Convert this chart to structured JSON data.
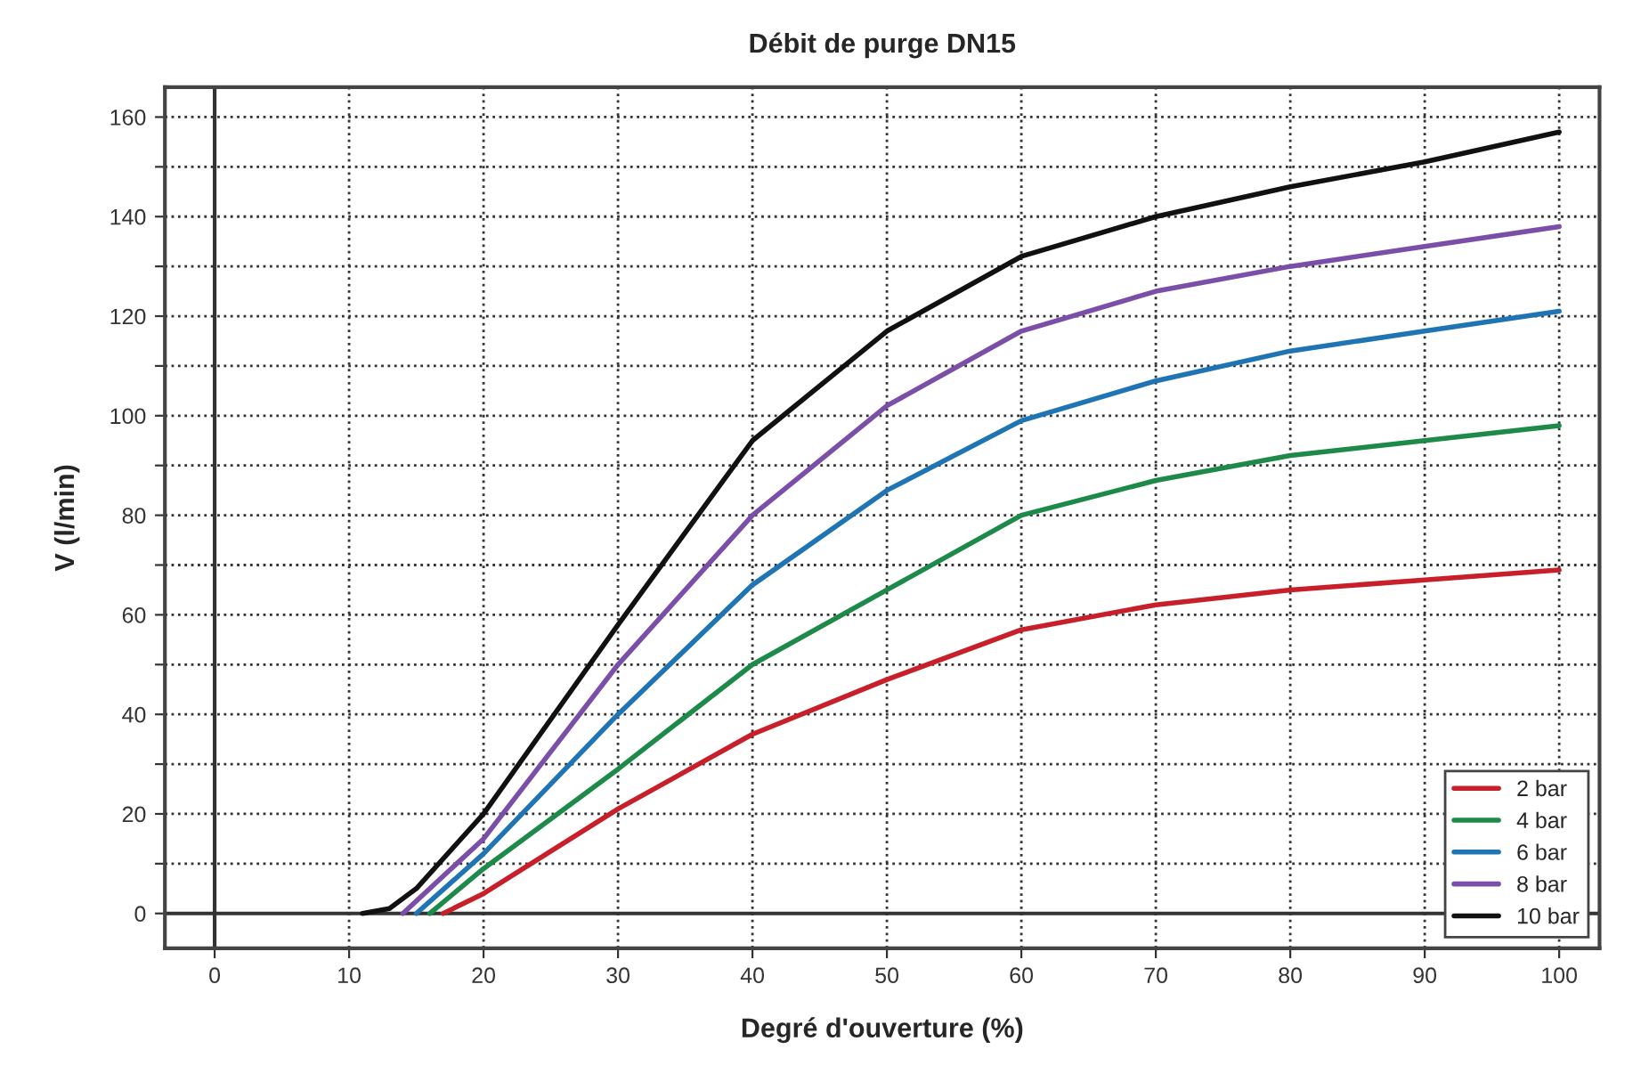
{
  "chart_data": {
    "type": "line",
    "title": "Débit de purge DN15",
    "xlabel": "Degré d'ouverture (%)",
    "ylabel": "V (l/min)",
    "xlim": [
      -3.7,
      103
    ],
    "ylim": [
      -7,
      166
    ],
    "xticks": [
      0,
      10,
      20,
      30,
      40,
      50,
      60,
      70,
      80,
      90,
      100
    ],
    "yticks": [
      0,
      {
        "value": 10,
        "label": null
      },
      20,
      {
        "value": 30,
        "label": null
      },
      40,
      {
        "value": 50,
        "label": null
      },
      60,
      {
        "value": 70,
        "label": null
      },
      80,
      {
        "value": 90,
        "label": null
      },
      100,
      {
        "value": 110,
        "label": null
      },
      120,
      {
        "value": 130,
        "label": null
      },
      140,
      {
        "value": 150,
        "label": null
      },
      160
    ],
    "grid": true,
    "legend": "bottom right",
    "marker": "none",
    "line_style": "solid",
    "series": [
      {
        "name": "2 bar",
        "color": "#c8202a",
        "x": [
          17,
          20,
          30,
          40,
          50,
          60,
          70,
          80,
          90,
          100
        ],
        "values": [
          0,
          4,
          21,
          36,
          47,
          57,
          62,
          65,
          67,
          69
        ]
      },
      {
        "name": "4 bar",
        "color": "#1e8a4a",
        "x": [
          16,
          20,
          30,
          40,
          50,
          60,
          70,
          80,
          90,
          100
        ],
        "values": [
          0,
          9,
          29,
          50,
          65,
          80,
          87,
          92,
          95,
          98
        ]
      },
      {
        "name": "6 bar",
        "color": "#1f74b4",
        "x": [
          15,
          20,
          30,
          40,
          50,
          60,
          70,
          80,
          90,
          100
        ],
        "values": [
          0,
          12,
          40,
          66,
          85,
          99,
          107,
          113,
          117,
          121
        ]
      },
      {
        "name": "8 bar",
        "color": "#7b4ea8",
        "x": [
          14,
          20,
          30,
          40,
          50,
          60,
          70,
          80,
          90,
          100
        ],
        "values": [
          0,
          15,
          50,
          80,
          102,
          117,
          125,
          130,
          134,
          138
        ]
      },
      {
        "name": "10 bar",
        "color": "#111111",
        "x": [
          11,
          13,
          15,
          20,
          30,
          40,
          50,
          60,
          70,
          80,
          90,
          100
        ],
        "values": [
          0,
          1,
          5,
          20,
          58,
          95,
          117,
          132,
          140,
          146,
          151,
          157
        ]
      }
    ]
  }
}
